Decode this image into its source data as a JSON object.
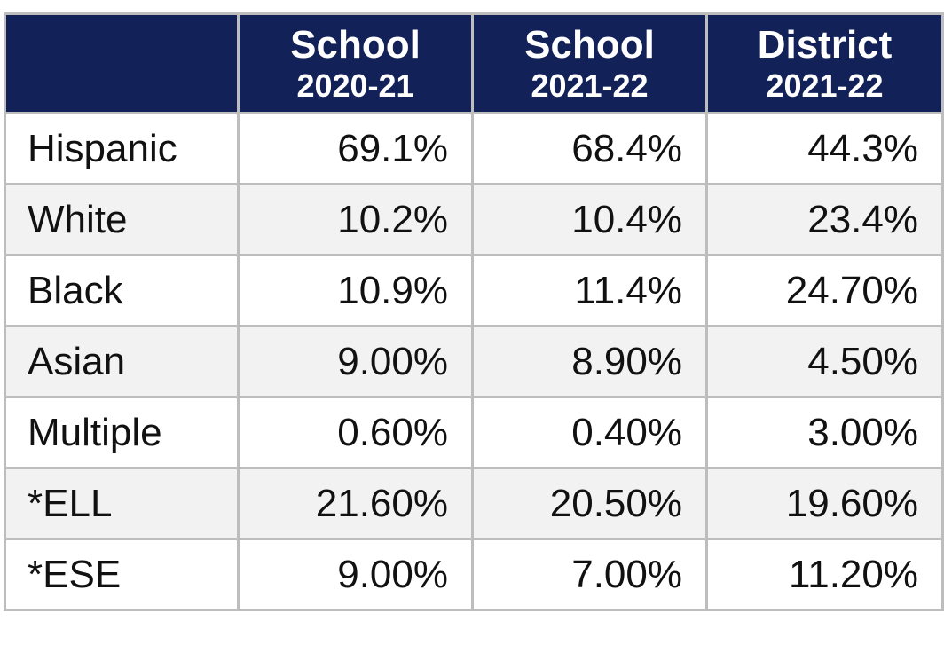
{
  "table": {
    "columns": [
      {
        "title": "School",
        "period": "2020-21"
      },
      {
        "title": "School",
        "period": "2021-22"
      },
      {
        "title": "District",
        "period": "2021-22"
      }
    ],
    "rows": [
      [
        "Hispanic",
        "69.1%",
        "68.4%",
        "44.3%"
      ],
      [
        "White",
        "10.2%",
        "10.4%",
        "23.4%"
      ],
      [
        "Black",
        "10.9%",
        "11.4%",
        "24.70%"
      ],
      [
        "Asian",
        "9.00%",
        "8.90%",
        "4.50%"
      ],
      [
        "Multiple",
        "0.60%",
        "0.40%",
        "3.00%"
      ],
      [
        "*ELL",
        "21.60%",
        "20.50%",
        "19.60%"
      ],
      [
        "*ESE",
        "9.00%",
        "7.00%",
        "11.20%"
      ]
    ]
  }
}
